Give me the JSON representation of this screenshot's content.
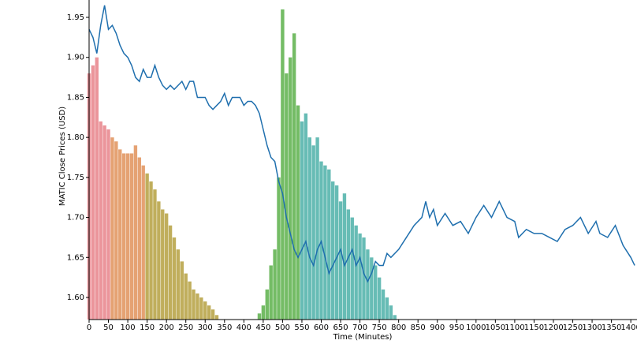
{
  "chart_data": {
    "type": "line",
    "xlabel": "Time (Minutes)",
    "ylabel": "MATIC Close Prices (USD)",
    "xlim": [
      0,
      1416
    ],
    "ylim": [
      1.5724,
      1.9717
    ],
    "xticks": [
      0,
      50,
      100,
      150,
      200,
      250,
      300,
      350,
      400,
      450,
      500,
      550,
      600,
      650,
      700,
      750,
      800,
      850,
      900,
      950,
      1000,
      1050,
      1100,
      1150,
      1200,
      1250,
      1300,
      1350,
      1400
    ],
    "yticks": [
      {
        "value": 1.6,
        "label": "1.60"
      },
      {
        "value": 1.65,
        "label": "1.65"
      },
      {
        "value": 1.7,
        "label": "1.70"
      },
      {
        "value": 1.75,
        "label": "1.75"
      },
      {
        "value": 1.8,
        "label": "1.80"
      },
      {
        "value": 1.85,
        "label": "1.85"
      },
      {
        "value": 1.9,
        "label": "1.90"
      },
      {
        "value": 1.95,
        "label": "1.95"
      }
    ],
    "series": [
      {
        "type": "bar",
        "color": "#e8828a",
        "x": [
          0,
          10,
          20,
          30,
          40,
          50
        ],
        "values": [
          1.88,
          1.89,
          1.9,
          1.82,
          1.815,
          1.81
        ]
      },
      {
        "type": "bar",
        "color": "#e0925a",
        "x": [
          60,
          70,
          80,
          90,
          100,
          110,
          120,
          130,
          140
        ],
        "values": [
          1.8,
          1.795,
          1.785,
          1.78,
          1.78,
          1.78,
          1.79,
          1.775,
          1.765
        ]
      },
      {
        "type": "bar",
        "color": "#b5a040",
        "x": [
          150,
          160,
          170,
          180,
          190,
          200,
          210,
          220,
          230,
          240,
          250,
          260,
          270,
          280,
          290,
          300,
          310,
          320,
          330
        ],
        "values": [
          1.755,
          1.745,
          1.735,
          1.72,
          1.71,
          1.705,
          1.69,
          1.675,
          1.66,
          1.645,
          1.63,
          1.62,
          1.61,
          1.605,
          1.6,
          1.595,
          1.59,
          1.585,
          1.578
        ]
      },
      {
        "type": "bar",
        "color": "#5cb04a",
        "x": [
          440,
          450,
          460,
          470,
          480,
          490,
          500,
          510,
          520,
          530,
          540
        ],
        "values": [
          1.58,
          1.59,
          1.61,
          1.64,
          1.66,
          1.75,
          1.96,
          1.88,
          1.9,
          1.93,
          1.84
        ]
      },
      {
        "type": "bar",
        "color": "#4cb0a8",
        "x": [
          550,
          560,
          570,
          580,
          590,
          600,
          610,
          620,
          630,
          640,
          650,
          660,
          670,
          680,
          690,
          700,
          710,
          720,
          730,
          740,
          750,
          760,
          770,
          780,
          790
        ],
        "values": [
          1.82,
          1.83,
          1.8,
          1.79,
          1.8,
          1.77,
          1.765,
          1.76,
          1.745,
          1.74,
          1.72,
          1.73,
          1.71,
          1.7,
          1.69,
          1.68,
          1.675,
          1.66,
          1.65,
          1.64,
          1.625,
          1.61,
          1.6,
          1.59,
          1.578
        ]
      },
      {
        "type": "line",
        "color": "#1f6fae",
        "x": [
          0,
          10,
          20,
          30,
          40,
          50,
          60,
          70,
          80,
          90,
          100,
          110,
          120,
          130,
          140,
          150,
          160,
          170,
          180,
          190,
          200,
          210,
          220,
          230,
          240,
          250,
          260,
          270,
          280,
          290,
          300,
          310,
          320,
          330,
          340,
          350,
          360,
          370,
          380,
          390,
          400,
          410,
          420,
          430,
          440,
          450,
          460,
          470,
          480,
          490,
          500,
          510,
          520,
          530,
          540,
          550,
          560,
          570,
          580,
          590,
          600,
          610,
          620,
          630,
          640,
          650,
          660,
          670,
          680,
          690,
          700,
          710,
          720,
          730,
          740,
          750,
          760,
          770,
          780,
          800,
          820,
          840,
          860,
          870,
          880,
          890,
          900,
          920,
          940,
          960,
          980,
          1000,
          1020,
          1040,
          1060,
          1080,
          1100,
          1110,
          1130,
          1150,
          1170,
          1190,
          1210,
          1230,
          1250,
          1270,
          1290,
          1310,
          1320,
          1340,
          1360,
          1380,
          1400,
          1410
        ],
        "values": [
          1.935,
          1.925,
          1.905,
          1.94,
          1.965,
          1.935,
          1.94,
          1.93,
          1.915,
          1.905,
          1.9,
          1.89,
          1.875,
          1.87,
          1.885,
          1.875,
          1.875,
          1.89,
          1.875,
          1.865,
          1.86,
          1.865,
          1.86,
          1.865,
          1.87,
          1.86,
          1.87,
          1.87,
          1.85,
          1.85,
          1.85,
          1.84,
          1.835,
          1.84,
          1.845,
          1.855,
          1.84,
          1.85,
          1.85,
          1.85,
          1.84,
          1.845,
          1.845,
          1.84,
          1.83,
          1.81,
          1.79,
          1.775,
          1.77,
          1.745,
          1.73,
          1.7,
          1.68,
          1.66,
          1.65,
          1.66,
          1.67,
          1.65,
          1.64,
          1.66,
          1.67,
          1.65,
          1.63,
          1.64,
          1.65,
          1.66,
          1.64,
          1.65,
          1.66,
          1.64,
          1.65,
          1.63,
          1.62,
          1.63,
          1.645,
          1.64,
          1.64,
          1.655,
          1.65,
          1.66,
          1.675,
          1.69,
          1.7,
          1.72,
          1.7,
          1.71,
          1.69,
          1.705,
          1.69,
          1.695,
          1.68,
          1.7,
          1.715,
          1.7,
          1.72,
          1.7,
          1.695,
          1.675,
          1.685,
          1.68,
          1.68,
          1.675,
          1.67,
          1.685,
          1.69,
          1.7,
          1.68,
          1.695,
          1.68,
          1.675,
          1.69,
          1.665,
          1.65,
          1.64
        ]
      }
    ]
  }
}
